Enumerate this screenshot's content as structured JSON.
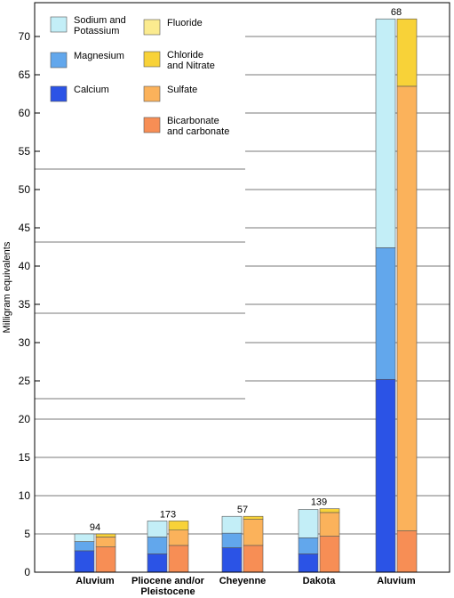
{
  "chart_data": {
    "type": "bar",
    "subtype": "stacked-paired",
    "ylabel": "Milligram equivalents",
    "xlabel": "",
    "ylim": [
      0,
      74
    ],
    "yticks": [
      0,
      5,
      10,
      15,
      20,
      25,
      30,
      35,
      40,
      45,
      50,
      55,
      60,
      65,
      70
    ],
    "grid": true,
    "legend_position": "top-left",
    "categories": [
      [
        "Aluvium"
      ],
      [
        "Pliocene and/or",
        "Pleistocene"
      ],
      [
        "Cheyenne"
      ],
      [
        "Dakota"
      ],
      [
        "Aluvium"
      ]
    ],
    "totals": [
      "94",
      "173",
      "57",
      "139",
      "68"
    ],
    "cations": {
      "series": [
        {
          "name": "Calcium",
          "color": "#2b53e6",
          "values": [
            2.8,
            2.4,
            3.2,
            2.4,
            25.2
          ]
        },
        {
          "name": "Magnesium",
          "color": "#62a7ec",
          "values": [
            1.2,
            2.2,
            1.9,
            2.1,
            17.2
          ]
        },
        {
          "name": [
            "Sodium and",
            "Potassium"
          ],
          "color": "#c3eef7",
          "values": [
            1.0,
            2.1,
            2.2,
            3.7,
            29.9
          ]
        }
      ]
    },
    "anions": {
      "series": [
        {
          "name": [
            "Bicarbonate",
            "and carbonate"
          ],
          "color": "#f78e55",
          "values": [
            3.3,
            3.5,
            3.5,
            4.7,
            5.4
          ]
        },
        {
          "name": "Sulfate",
          "color": "#fbb25b",
          "values": [
            1.3,
            2.0,
            3.4,
            3.1,
            58.1
          ]
        },
        {
          "name": [
            "Chloride",
            "and Nitrate"
          ],
          "color": "#f8d238",
          "values": [
            0.4,
            1.2,
            0.4,
            0.5,
            8.8
          ]
        },
        {
          "name": "Fluoride",
          "color": "#fbeb8f",
          "values": [
            0,
            0,
            0,
            0,
            0
          ]
        }
      ]
    }
  },
  "legend": {
    "left": [
      {
        "lines": [
          "Sodium and",
          "Potassium"
        ],
        "color": "#c3eef7"
      },
      {
        "lines": [
          "Magnesium"
        ],
        "color": "#62a7ec"
      },
      {
        "lines": [
          "Calcium"
        ],
        "color": "#2b53e6"
      }
    ],
    "right": [
      {
        "lines": [
          "Fluoride"
        ],
        "color": "#fbeb8f"
      },
      {
        "lines": [
          "Chloride",
          "and Nitrate"
        ],
        "color": "#f8d238"
      },
      {
        "lines": [
          "Sulfate"
        ],
        "color": "#fbb25b"
      },
      {
        "lines": [
          "Bicarbonate",
          "and carbonate"
        ],
        "color": "#f78e55"
      }
    ]
  }
}
